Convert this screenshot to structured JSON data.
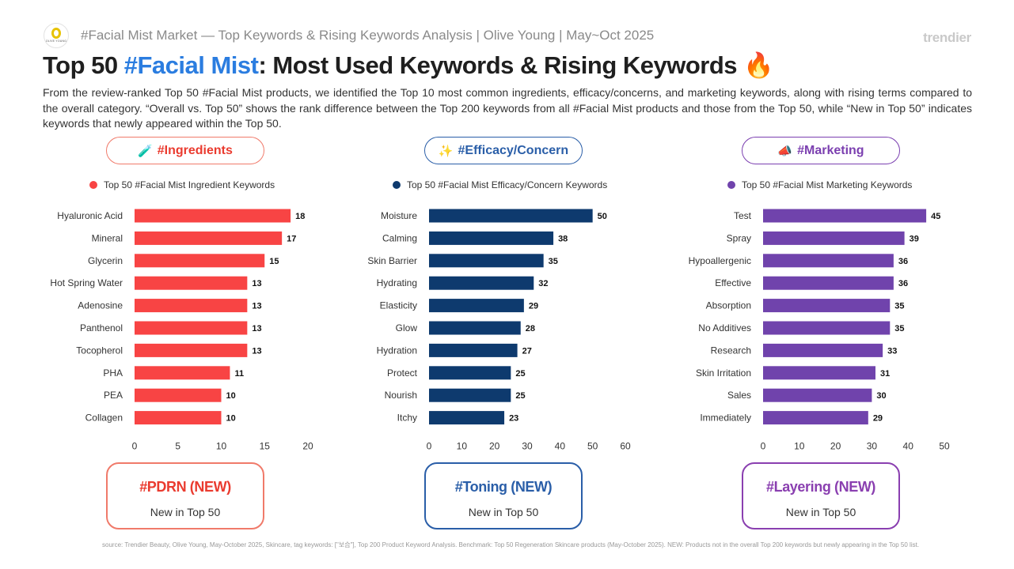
{
  "logo_text": "OLIVE YOUNG",
  "subheader": "#Facial Mist Market — Top Keywords & Rising Keywords Analysis | Olive Young | May~Oct 2025",
  "brand": "trendier",
  "title": {
    "prefix": "Top 50 ",
    "highlight": "#Facial Mist",
    "suffix": ": Most Used Keywords & Rising Keywords ",
    "emoji": "🔥"
  },
  "description": "From the review-ranked Top 50 #Facial Mist products, we identified the Top 10 most common ingredients, efficacy/concerns, and marketing keywords, along with rising terms compared to the overall category. “Overall vs. Top 50” shows the rank difference between the Top 200 keywords from all #Facial Mist products and those from the Top 50, while “New in Top 50” indicates keywords that newly appeared within the Top 50.",
  "colors": {
    "ingredients": "#f84444",
    "efficacy": "#0e3a6e",
    "marketing": "#7043ac",
    "pill_ingredients": "#ea3b2f",
    "pill_efficacy": "#2a5ea8",
    "pill_marketing": "#7b3fb0",
    "box_ingredients": "#f07a6a",
    "box_efficacy": "#2a5ea8",
    "box_marketing": "#8a3fb0"
  },
  "pills": {
    "ingredients": {
      "icon": "🧪",
      "label": "#Ingredients"
    },
    "efficacy": {
      "icon": "✨",
      "label": "#Efficacy/Concern"
    },
    "marketing": {
      "icon": "📣",
      "label": "#Marketing"
    }
  },
  "legends": {
    "ingredients": "Top 50 #Facial Mist Ingredient Keywords",
    "efficacy": "Top 50 #Facial Mist Efficacy/Concern Keywords",
    "marketing": "Top 50 #Facial Mist Marketing Keywords"
  },
  "chart_data": [
    {
      "type": "bar",
      "orientation": "horizontal",
      "series": [
        {
          "name": "Top 50 #Facial Mist Ingredient Keywords",
          "values": [
            18,
            17,
            15,
            13,
            13,
            13,
            13,
            11,
            10,
            10
          ]
        }
      ],
      "categories": [
        "Hyaluronic Acid",
        "Mineral",
        "Glycerin",
        "Hot Spring Water",
        "Adenosine",
        "Panthenol",
        "Tocopherol",
        "PHA",
        "PEA",
        "Collagen"
      ],
      "xlim": [
        0,
        20
      ],
      "xticks": [
        0,
        5,
        10,
        15,
        20
      ],
      "legend": "top"
    },
    {
      "type": "bar",
      "orientation": "horizontal",
      "series": [
        {
          "name": "Top 50 #Facial Mist Efficacy/Concern Keywords",
          "values": [
            50,
            38,
            35,
            32,
            29,
            28,
            27,
            25,
            25,
            23
          ]
        }
      ],
      "categories": [
        "Moisture",
        "Calming",
        "Skin Barrier",
        "Hydrating",
        "Elasticity",
        "Glow",
        "Hydration",
        "Protect",
        "Nourish",
        "Itchy"
      ],
      "xlim": [
        0,
        60
      ],
      "xticks": [
        0,
        10,
        20,
        30,
        40,
        50,
        60
      ],
      "legend": "top"
    },
    {
      "type": "bar",
      "orientation": "horizontal",
      "series": [
        {
          "name": "Top 50 #Facial Mist Marketing Keywords",
          "values": [
            45,
            39,
            36,
            36,
            35,
            35,
            33,
            31,
            30,
            29
          ]
        }
      ],
      "categories": [
        "Test",
        "Spray",
        "Hypoallergenic",
        "Effective",
        "Absorption",
        "No Additives",
        "Research",
        "Skin Irritation",
        "Sales",
        "Immediately"
      ],
      "xlim": [
        0,
        50
      ],
      "xticks": [
        0,
        10,
        20,
        30,
        40,
        50
      ],
      "legend": "top"
    }
  ],
  "new_keywords": {
    "ingredients": {
      "title": "#PDRN (NEW)",
      "sub": "New in Top 50"
    },
    "efficacy": {
      "title": "#Toning (NEW)",
      "sub": "New in Top 50"
    },
    "marketing": {
      "title": "#Layering (NEW)",
      "sub": "New in Top 50"
    }
  },
  "footer": "source: Trendier Beauty, Olive Young, May-October 2025, Skincare, tag keywords: [\"보습\"], Top 200 Product Keyword Analysis. Benchmark: Top 50 Regeneration Skincare products (May-October 2025). NEW: Products not in the overall Top 200 keywords but newly appearing in the Top 50 list."
}
